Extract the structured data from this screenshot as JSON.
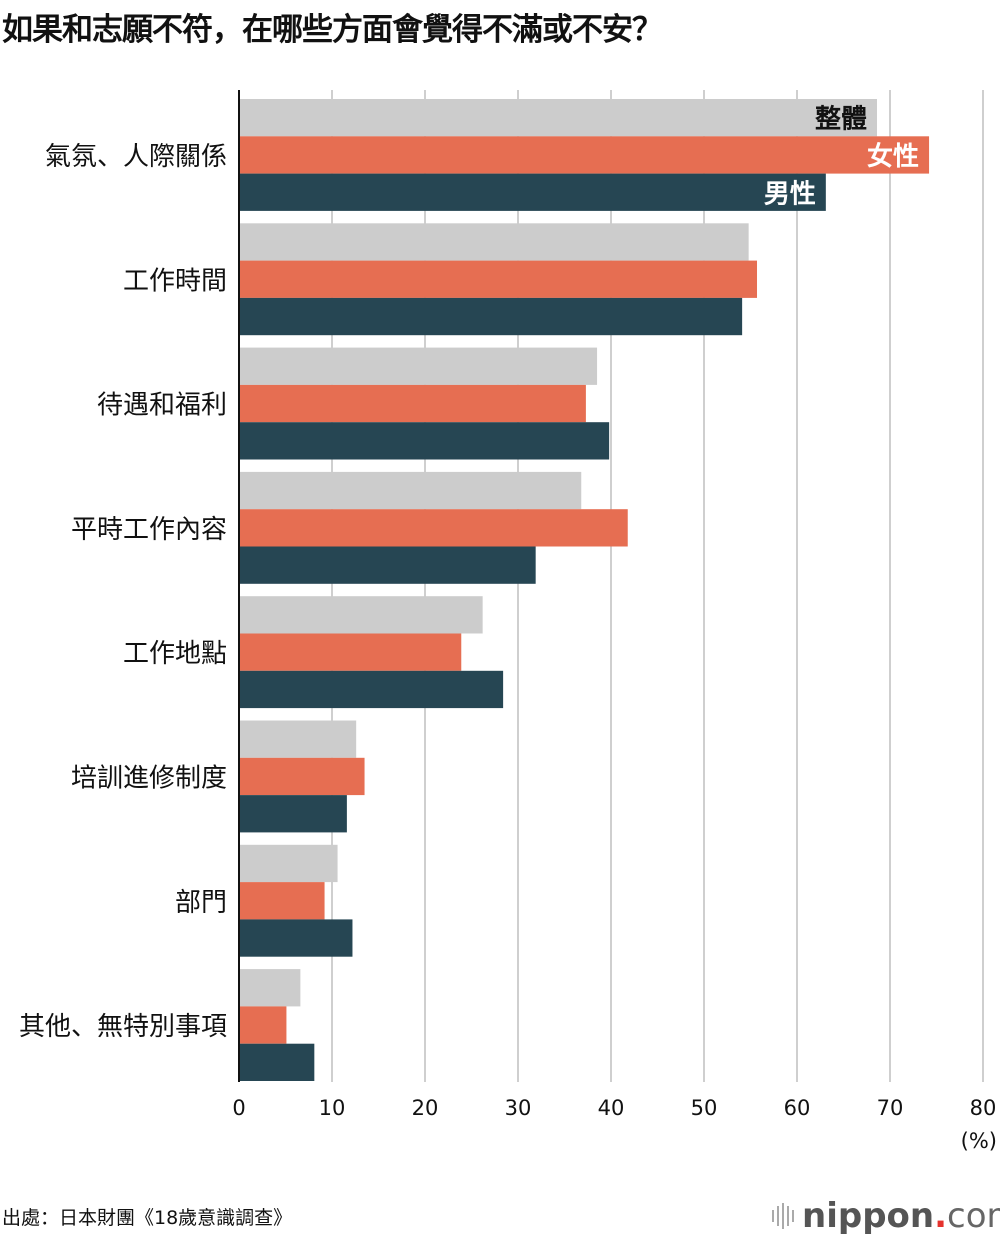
{
  "title": "如果和志願不符，在哪些方面會覺得不滿或不安？",
  "source": "出處：日本財團《18歲意識調查》",
  "logo": {
    "name": "nippon",
    "dot": ".",
    "suffix": "com"
  },
  "chart_data": {
    "type": "bar",
    "orientation": "horizontal",
    "title": "如果和志願不符，在哪些方面會覺得不滿或不安？",
    "categories": [
      "氣氛、人際關係",
      "工作時間",
      "待遇和福利",
      "平時工作內容",
      "工作地點",
      "培訓進修制度",
      "部門",
      "其他、無特別事項"
    ],
    "series": [
      {
        "name": "整體",
        "color": "#cccccc",
        "label_color": "#111111",
        "values": [
          68.6,
          54.8,
          38.5,
          36.8,
          26.2,
          12.6,
          10.6,
          6.6
        ]
      },
      {
        "name": "女性",
        "color": "#e66e52",
        "label_color": "#ffffff",
        "values": [
          74.2,
          55.7,
          37.3,
          41.8,
          23.9,
          13.5,
          9.2,
          5.1
        ]
      },
      {
        "name": "男性",
        "color": "#264653",
        "label_color": "#ffffff",
        "values": [
          63.1,
          54.1,
          39.8,
          31.9,
          28.4,
          11.6,
          12.2,
          8.1
        ]
      }
    ],
    "xlim": [
      0,
      80
    ],
    "xticks": [
      "0",
      "10",
      "20",
      "30",
      "40",
      "50",
      "60",
      "70",
      "80"
    ],
    "xlabel": "(%)",
    "grid": true,
    "legend": "inside-first-group-bars"
  }
}
